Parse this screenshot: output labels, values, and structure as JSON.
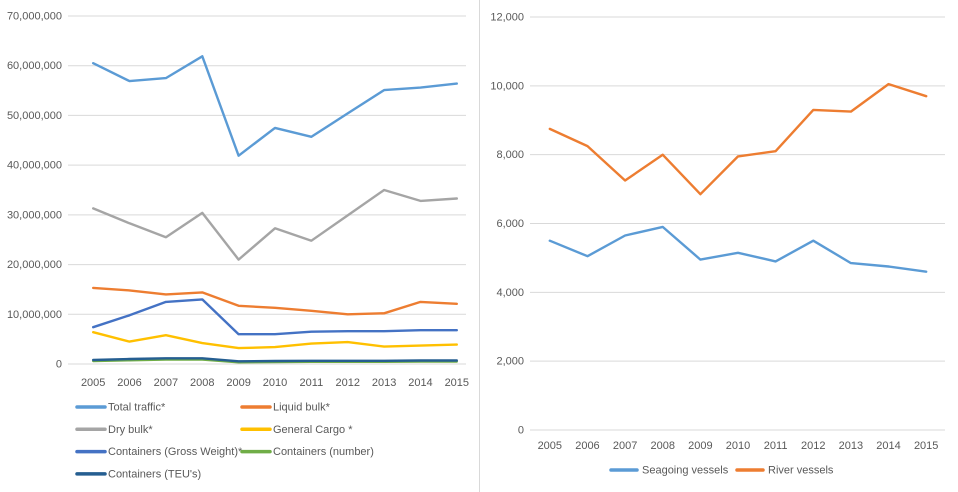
{
  "colors": {
    "background": "#ffffff",
    "axis_text": "#595959",
    "gridline": "#d9d9d9",
    "divider": "#d9d9d9"
  },
  "chart_data": [
    {
      "id": "cargo-traffic",
      "type": "line",
      "title": "",
      "xlabel": "",
      "ylabel": "",
      "grid": true,
      "legend_position": "bottom-left-two-columns",
      "categories": [
        "2005",
        "2006",
        "2007",
        "2008",
        "2009",
        "2010",
        "2011",
        "2012",
        "2013",
        "2014",
        "2015"
      ],
      "ylim": [
        0,
        70000000
      ],
      "ytick_step": 10000000,
      "ytick_labels": [
        "0",
        "10,000,000",
        "20,000,000",
        "30,000,000",
        "40,000,000",
        "50,000,000",
        "60,000,000",
        "70,000,000"
      ],
      "series": [
        {
          "name": "Total traffic*",
          "color": "#5B9BD5",
          "values": [
            60500000,
            56900000,
            57500000,
            61900000,
            41900000,
            47500000,
            45700000,
            50400000,
            55100000,
            55600000,
            56400000
          ]
        },
        {
          "name": "Liquid bulk*",
          "color": "#ED7D31",
          "values": [
            15300000,
            14800000,
            14000000,
            14400000,
            11700000,
            11300000,
            10700000,
            10000000,
            10200000,
            12500000,
            12100000
          ]
        },
        {
          "name": "Dry bulk*",
          "color": "#A5A5A5",
          "values": [
            31300000,
            28300000,
            25500000,
            30400000,
            21000000,
            27300000,
            24800000,
            29900000,
            35000000,
            32800000,
            33300000
          ]
        },
        {
          "name": "General Cargo *",
          "color": "#FFC000",
          "values": [
            6400000,
            4500000,
            5800000,
            4200000,
            3200000,
            3400000,
            4100000,
            4400000,
            3500000,
            3700000,
            3900000
          ]
        },
        {
          "name": "Containers (Gross Weight)*",
          "color": "#4472C4",
          "values": [
            7400000,
            9800000,
            12500000,
            13000000,
            6000000,
            6000000,
            6500000,
            6600000,
            6600000,
            6800000,
            6800000
          ]
        },
        {
          "name": "Containers (number)",
          "color": "#70AD47",
          "values": [
            600000,
            750000,
            900000,
            900000,
            350000,
            400000,
            450000,
            450000,
            450000,
            500000,
            500000
          ]
        },
        {
          "name": "Containers (TEU's)",
          "color": "#255E91",
          "values": [
            800000,
            1000000,
            1150000,
            1150000,
            550000,
            600000,
            650000,
            650000,
            650000,
            700000,
            700000
          ]
        }
      ]
    },
    {
      "id": "vessel-counts",
      "type": "line",
      "title": "",
      "xlabel": "",
      "ylabel": "",
      "grid": true,
      "legend_position": "bottom-center",
      "categories": [
        "2005",
        "2006",
        "2007",
        "2008",
        "2009",
        "2010",
        "2011",
        "2012",
        "2013",
        "2014",
        "2015"
      ],
      "ylim": [
        0,
        12000
      ],
      "ytick_step": 2000,
      "ytick_labels": [
        "0",
        "2,000",
        "4,000",
        "6,000",
        "8,000",
        "10,000",
        "12,000"
      ],
      "series": [
        {
          "name": "Seagoing vessels",
          "color": "#5B9BD5",
          "values": [
            5500,
            5050,
            5650,
            5900,
            4950,
            5150,
            4900,
            5500,
            4850,
            4750,
            4600
          ]
        },
        {
          "name": "River vessels",
          "color": "#ED7D31",
          "values": [
            8750,
            8250,
            7250,
            8000,
            6850,
            7950,
            8100,
            9300,
            9250,
            10050,
            9700
          ]
        }
      ]
    }
  ]
}
